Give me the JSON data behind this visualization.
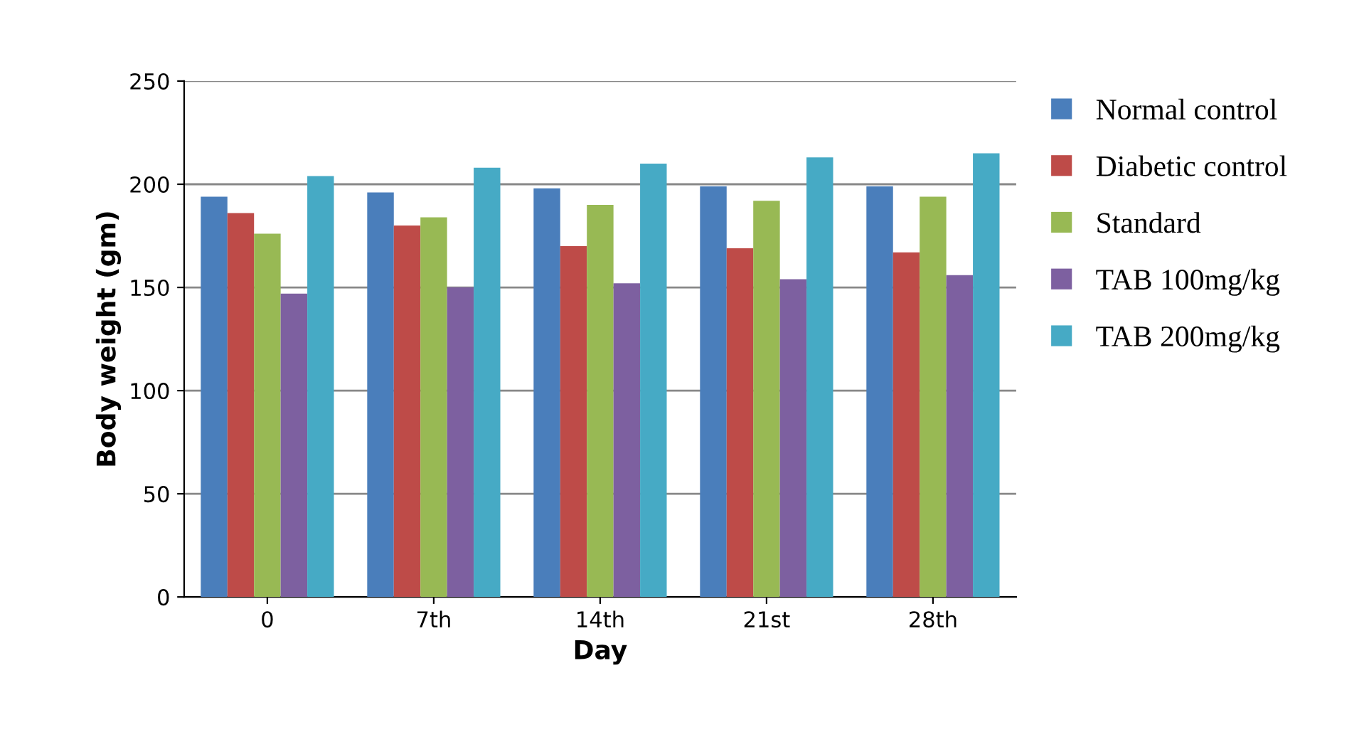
{
  "chart_data": {
    "type": "bar",
    "xlabel": "Day",
    "ylabel": "Body weight (gm)",
    "categories": [
      "0",
      "7th",
      "14th",
      "21st",
      "28th"
    ],
    "series": [
      {
        "name": "Normal control",
        "color": "#4a7ebb",
        "values": [
          194,
          196,
          198,
          199,
          199
        ]
      },
      {
        "name": "Diabetic control",
        "color": "#be4b48",
        "values": [
          186,
          180,
          170,
          169,
          167
        ]
      },
      {
        "name": "Standard",
        "color": "#98b954",
        "values": [
          176,
          184,
          190,
          192,
          194
        ]
      },
      {
        "name": "TAB 100mg/kg",
        "color": "#7d60a0",
        "values": [
          147,
          150,
          152,
          154,
          156
        ]
      },
      {
        "name": "TAB 200mg/kg",
        "color": "#46aac5",
        "values": [
          204,
          208,
          210,
          213,
          215
        ]
      }
    ],
    "ylim": [
      0,
      250
    ],
    "yticks": [
      0,
      50,
      100,
      150,
      200,
      250
    ],
    "grid": "y",
    "legend": "right"
  }
}
